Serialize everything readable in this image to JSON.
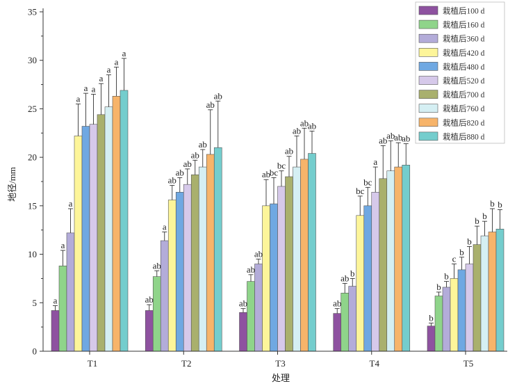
{
  "chart_data": {
    "type": "bar",
    "categories": [
      "T1",
      "T2",
      "T3",
      "T4",
      "T5"
    ],
    "xlabel": "处理",
    "ylabel": "地径/mm",
    "ylim": [
      0,
      35
    ],
    "yticks": [
      0,
      5,
      10,
      15,
      20,
      25,
      30,
      35
    ],
    "grid": false,
    "legend_position": "top-right",
    "series": [
      {
        "name": "栽植后100 d",
        "color": "#8e52a0",
        "values": [
          4.2,
          4.2,
          4.0,
          3.9,
          2.6
        ],
        "errors": [
          0.5,
          0.6,
          0.4,
          0.5,
          0.3
        ],
        "letters": [
          "a",
          "ab",
          "ab",
          "ab",
          "b"
        ]
      },
      {
        "name": "栽植后160 d",
        "color": "#8fd48a",
        "values": [
          8.8,
          7.7,
          7.2,
          6.0,
          5.7
        ],
        "errors": [
          1.6,
          0.6,
          0.7,
          1.0,
          0.4
        ],
        "letters": [
          "a",
          "ab",
          "ab",
          "ab",
          "b"
        ]
      },
      {
        "name": "栽植后360 d",
        "color": "#b3acd9",
        "values": [
          12.2,
          11.4,
          9.0,
          6.7,
          6.6
        ],
        "errors": [
          2.5,
          0.9,
          0.5,
          0.8,
          0.6
        ],
        "letters": [
          "a",
          "a",
          "ab",
          "b",
          "b"
        ]
      },
      {
        "name": "栽植后420 d",
        "color": "#fdf59a",
        "values": [
          22.2,
          15.6,
          15.0,
          14.0,
          7.5
        ],
        "errors": [
          3.3,
          1.5,
          2.7,
          2.0,
          1.5
        ],
        "letters": [
          "a",
          "ab",
          "ab",
          "bc",
          "c"
        ]
      },
      {
        "name": "栽植后480 d",
        "color": "#6fa8e2",
        "values": [
          23.2,
          16.4,
          15.2,
          15.0,
          8.4
        ],
        "errors": [
          3.4,
          1.5,
          2.7,
          1.9,
          1.3
        ],
        "letters": [
          "a",
          "ab",
          "bc",
          "bc",
          "b"
        ]
      },
      {
        "name": "栽植后520 d",
        "color": "#d6c9ea",
        "values": [
          23.4,
          17.2,
          17.0,
          16.4,
          9.0
        ],
        "errors": [
          3.1,
          1.6,
          1.6,
          2.6,
          1.8
        ],
        "letters": [
          "a",
          "ab",
          "bc",
          "a",
          "b"
        ]
      },
      {
        "name": "栽植后700 d",
        "color": "#a9b06d",
        "values": [
          24.4,
          18.2,
          18.0,
          17.8,
          11.0
        ],
        "errors": [
          3.2,
          1.5,
          2.1,
          3.4,
          1.9
        ],
        "letters": [
          "a",
          "ab",
          "ab",
          "ab",
          "b"
        ]
      },
      {
        "name": "栽植后760 d",
        "color": "#d5eff3",
        "values": [
          25.2,
          19.0,
          19.0,
          18.6,
          11.9
        ],
        "errors": [
          3.3,
          1.8,
          3.2,
          3.1,
          1.5
        ],
        "letters": [
          "a",
          "ab",
          "ab",
          "ab",
          "b"
        ]
      },
      {
        "name": "栽植后820 d",
        "color": "#f7b46a",
        "values": [
          26.3,
          20.3,
          19.8,
          19.0,
          12.3
        ],
        "errors": [
          3.0,
          4.6,
          3.2,
          2.5,
          2.4
        ],
        "letters": [
          "a",
          "ab",
          "ab",
          "ab",
          "b"
        ]
      },
      {
        "name": "栽植后880 d",
        "color": "#74cdcd",
        "values": [
          26.9,
          21.0,
          20.4,
          19.2,
          12.6
        ],
        "errors": [
          3.3,
          4.8,
          2.3,
          2.2,
          2.0
        ],
        "letters": [
          "a",
          "ab",
          "ab",
          "ab",
          "b"
        ]
      }
    ]
  }
}
